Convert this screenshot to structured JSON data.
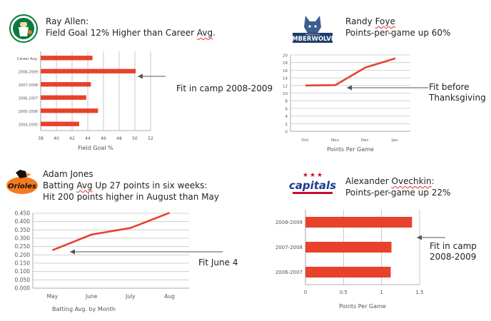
{
  "panels": [
    {
      "title_line1": "Ray Allen:",
      "title_line2": "Field Goal 12% Higher than Career Avg.",
      "annotation": "Fit in camp 2008-2009",
      "logo": "celtics-logo"
    },
    {
      "title_line1": "Randy Foye",
      "title_line2": "Points-per-game up 60%",
      "annotation_line1": "Fit before",
      "annotation_line2": "Thanksgiving",
      "logo": "timberwolves-logo",
      "logo_text": "TIMBERWOLVES",
      "logo_subtext": "MINNESOTA"
    },
    {
      "title_line1": "Adam Jones",
      "title_line2": "Batting Avg Up 27 points in six weeks:",
      "title_line3": "Hit 200 points higher in August than May",
      "annotation": "Fit June 4",
      "logo": "orioles-logo",
      "logo_text": "Orioles"
    },
    {
      "title_line1": "Alexander Ovechkin:",
      "title_line2": "Points-per-game up 22%",
      "annotation_line1": "Fit in camp",
      "annotation_line2": "2008-2009",
      "logo": "capitals-logo",
      "logo_text": "capitals"
    }
  ],
  "chart_data": [
    {
      "type": "bar",
      "orientation": "horizontal",
      "categories": [
        "Career Avg.",
        "2008-2009",
        "2007-2008",
        "2006-2007",
        "2005-2006",
        "2004-2005"
      ],
      "values": [
        44.6,
        50.1,
        44.4,
        43.8,
        45.3,
        42.9
      ],
      "xlabel": "Field Goal %",
      "xlim": [
        38,
        52
      ],
      "xticks": [
        "38",
        "40",
        "42",
        "44",
        "46",
        "48",
        "50",
        "52"
      ],
      "grid": true,
      "color": "#e8412c"
    },
    {
      "type": "line",
      "categories": [
        "Oct.",
        "Nov.",
        "Dec.",
        "Jan."
      ],
      "values": [
        12,
        12.1,
        16.7,
        19.1
      ],
      "xlabel": "Points Per Game",
      "ylim": [
        0,
        20
      ],
      "yticks": [
        "0",
        "2",
        "4",
        "6",
        "8",
        "10",
        "12",
        "14",
        "16",
        "18",
        "20"
      ],
      "grid": true,
      "color": "#e8412c"
    },
    {
      "type": "line",
      "categories": [
        "May",
        "June",
        "July",
        "Aug"
      ],
      "values": [
        0.228,
        0.322,
        0.362,
        0.453
      ],
      "xlabel": "Batting Avg. by Month",
      "ylim": [
        0,
        0.45
      ],
      "yticks": [
        "0.000",
        "0.050",
        "0.100",
        "0.150",
        "0.200",
        "0.250",
        "0.300",
        "0.350",
        "0.400",
        "0.450"
      ],
      "grid": true,
      "color": "#e8412c"
    },
    {
      "type": "bar",
      "orientation": "horizontal",
      "categories": [
        "2008-2009",
        "2007-2008",
        "2006-2007"
      ],
      "values": [
        1.4,
        1.13,
        1.12
      ],
      "xlabel": "Points Per Game",
      "xlim": [
        0,
        1.5
      ],
      "xticks": [
        "0",
        "0.5",
        "1",
        "1.5"
      ],
      "grid": true,
      "color": "#e8412c"
    }
  ]
}
